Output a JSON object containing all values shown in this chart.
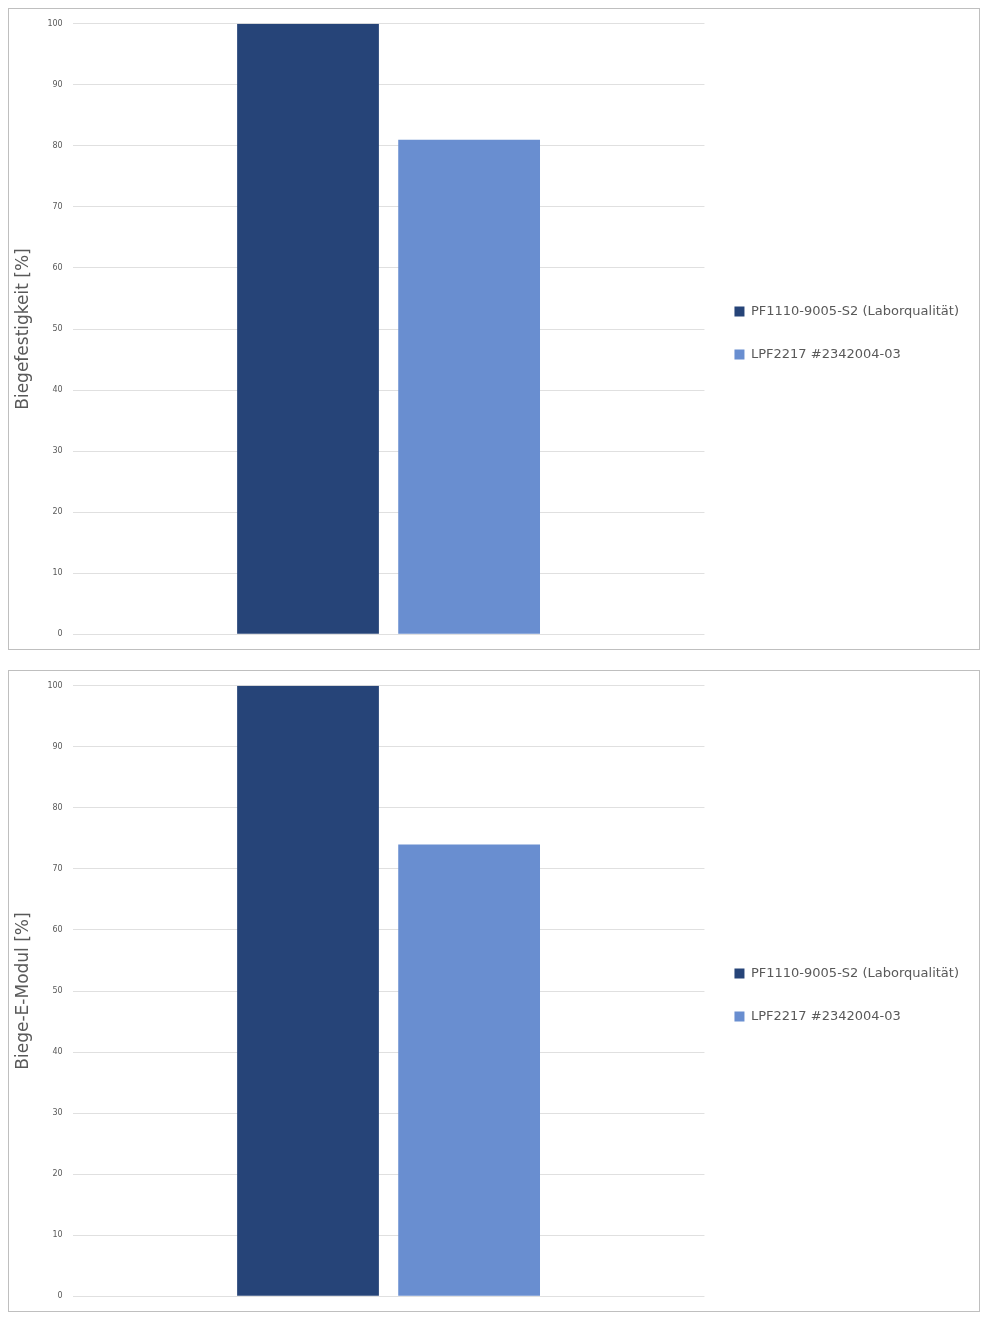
{
  "chart_data": [
    {
      "type": "bar",
      "ylabel": "Biegefestigkeit [%]",
      "categories": [
        null
      ],
      "series": [
        {
          "name": "PF1110-9005-S2 (Laborqualität)",
          "color": "#264478",
          "values": [
            100
          ]
        },
        {
          "name": "LPF2217 #2342004-03",
          "color": "#698ed0",
          "values": [
            81
          ]
        }
      ],
      "ylim": [
        0,
        100
      ],
      "yticks": [
        0,
        10,
        20,
        30,
        40,
        50,
        60,
        70,
        80,
        90,
        100
      ],
      "grid": "y",
      "legend": "right",
      "tick_labels": "y"
    },
    {
      "type": "bar",
      "ylabel": "Biege-E-Modul [%]",
      "categories": [
        null
      ],
      "series": [
        {
          "name": "PF1110-9005-S2 (Laborqualität)",
          "color": "#264478",
          "values": [
            100
          ]
        },
        {
          "name": "LPF2217 #2342004-03",
          "color": "#698ed0",
          "values": [
            74
          ]
        }
      ],
      "ylim": [
        0,
        100
      ],
      "yticks": [
        0,
        10,
        20,
        30,
        40,
        50,
        60,
        70,
        80,
        90,
        100
      ],
      "grid": "y",
      "legend": "right",
      "tick_labels": "y"
    }
  ]
}
